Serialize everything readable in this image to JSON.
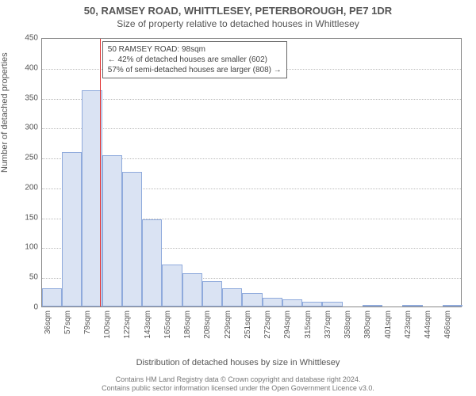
{
  "title": "50, RAMSEY ROAD, WHITTLESEY, PETERBOROUGH, PE7 1DR",
  "subtitle": "Size of property relative to detached houses in Whittlesey",
  "chart": {
    "type": "histogram",
    "bar_fill": "#dae3f3",
    "bar_stroke": "#8faadc",
    "background_color": "#ffffff",
    "grid_color": "#bbbbbb",
    "axis_color": "#888888",
    "marker_color": "#e03030",
    "ylabel": "Number of detached properties",
    "xlabel": "Distribution of detached houses by size in Whittlesey",
    "ylim": [
      0,
      450
    ],
    "ytick_step": 50,
    "yticks": [
      0,
      50,
      100,
      150,
      200,
      250,
      300,
      350,
      400,
      450
    ],
    "bin_start": 36,
    "bin_width_sqm": 21.5,
    "marker_value_sqm": 98,
    "xticks": [
      "36sqm",
      "57sqm",
      "79sqm",
      "100sqm",
      "122sqm",
      "143sqm",
      "165sqm",
      "186sqm",
      "208sqm",
      "229sqm",
      "251sqm",
      "272sqm",
      "294sqm",
      "315sqm",
      "337sqm",
      "358sqm",
      "380sqm",
      "401sqm",
      "423sqm",
      "444sqm",
      "466sqm"
    ],
    "values": [
      30,
      258,
      362,
      253,
      225,
      145,
      70,
      55,
      42,
      30,
      22,
      15,
      12,
      8,
      8,
      0,
      2,
      0,
      2,
      0,
      1
    ],
    "title_fontsize": 13,
    "label_fontsize": 11,
    "tick_fontsize": 10
  },
  "annotation": {
    "line1": "50 RAMSEY ROAD: 98sqm",
    "line2": "← 42% of detached houses are smaller (602)",
    "line3": "57% of semi-detached houses are larger (808) →"
  },
  "attribution": {
    "line1": "Contains HM Land Registry data © Crown copyright and database right 2024.",
    "line2": "Contains public sector information licensed under the Open Government Licence v3.0."
  }
}
